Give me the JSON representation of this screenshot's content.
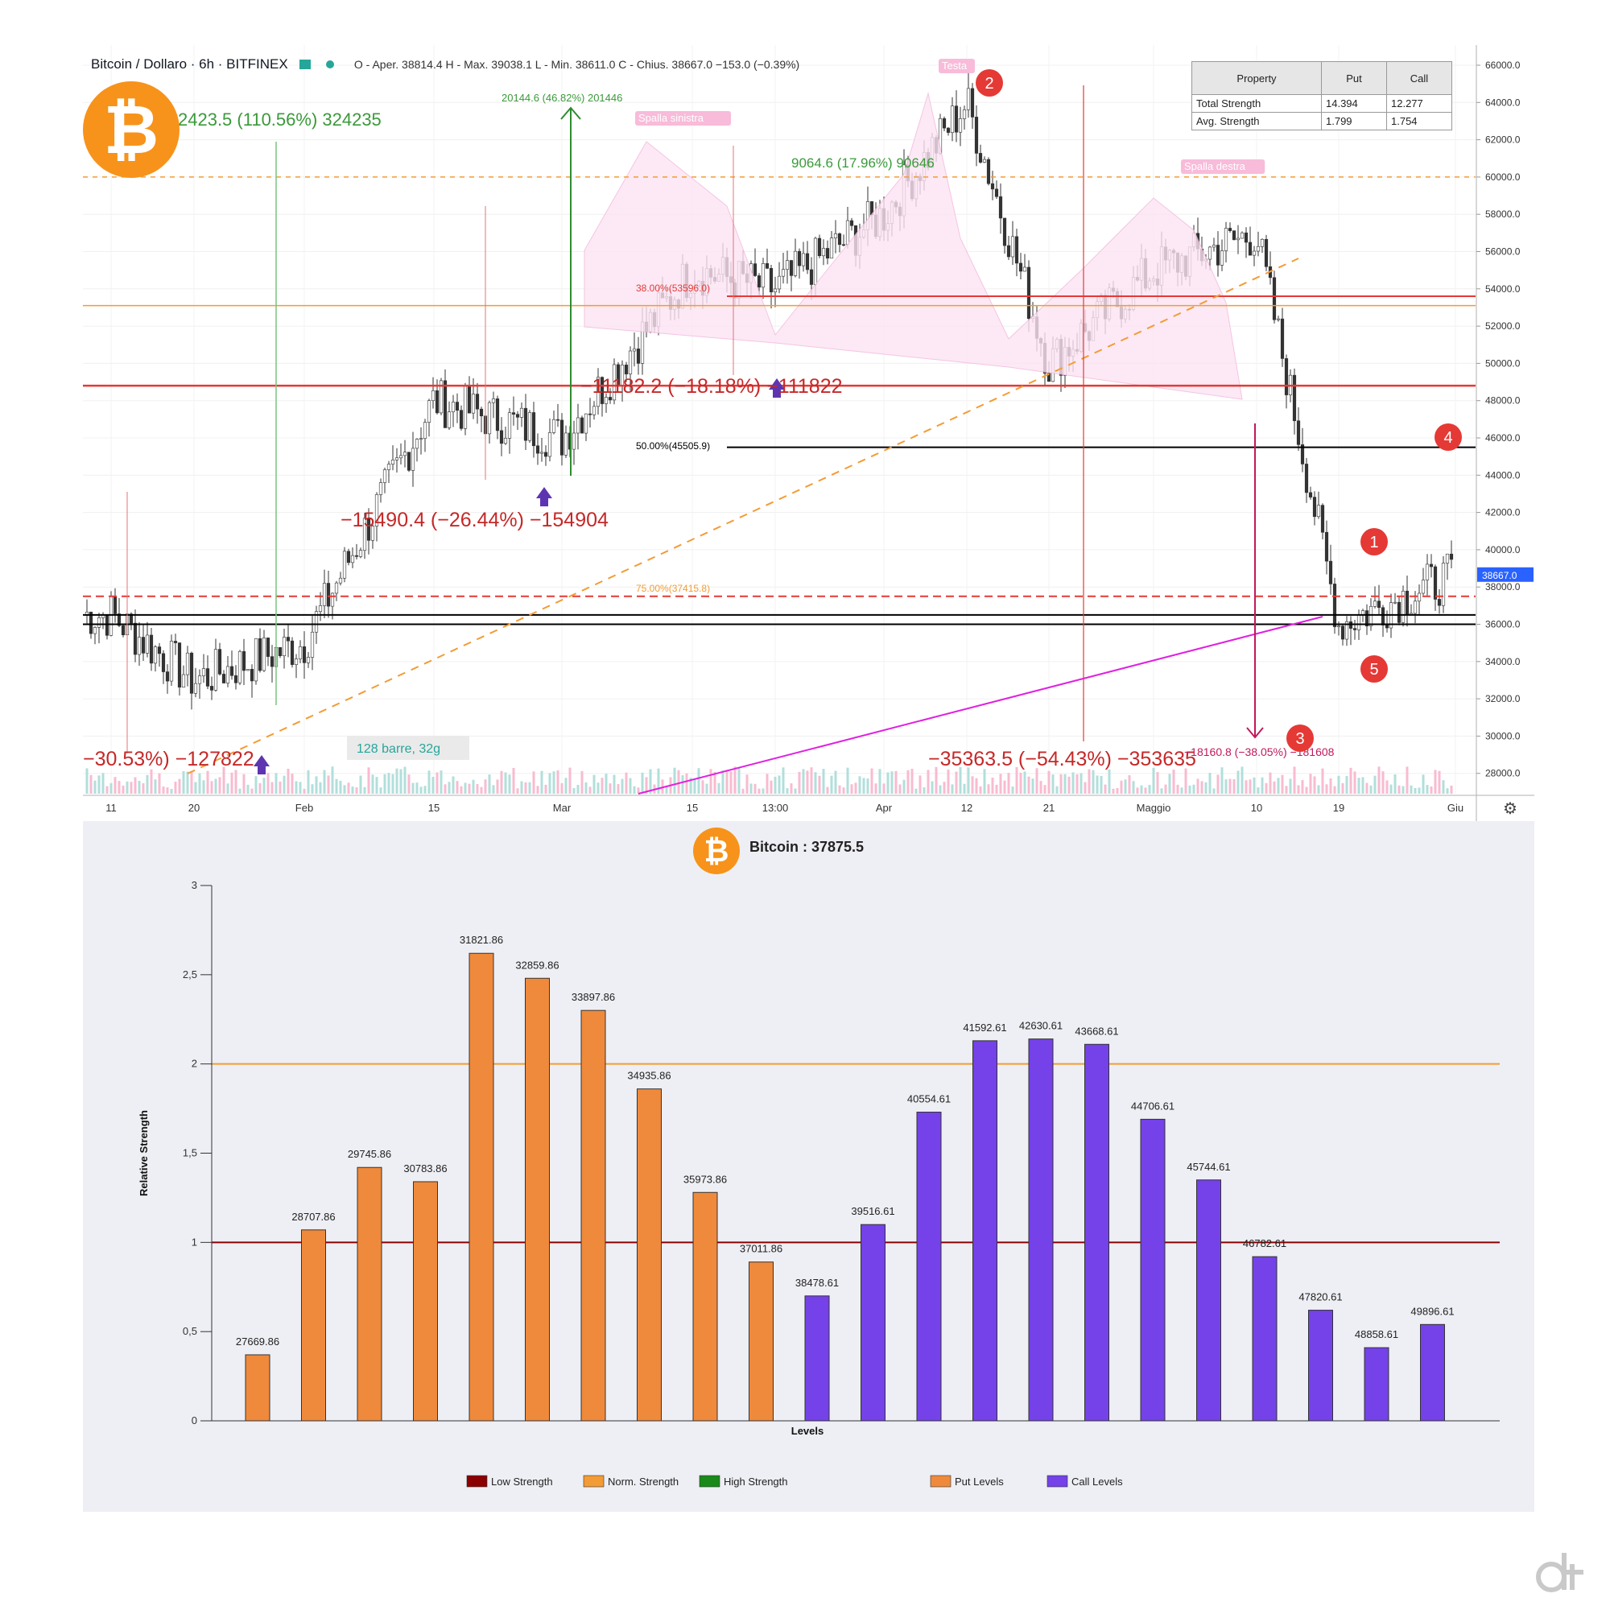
{
  "header": {
    "symbol": "Bitcoin / Dollaro · 6h · BITFINEX",
    "ohlc": "O - Aper. 38814.4  H - Max. 39038.1  L - Min. 38611.0  C - Chius. 38667.0  −153.0 (−0.39%)"
  },
  "property_table": {
    "headers": [
      "Property",
      "Put",
      "Call"
    ],
    "rows": [
      [
        "Total Strength",
        "14.394",
        "12.277"
      ],
      [
        "Avg. Strength",
        "1.799",
        "1.754"
      ]
    ]
  },
  "price_axis_ticks": [
    "66000.0",
    "64000.0",
    "62000.0",
    "60000.0",
    "58000.0",
    "56000.0",
    "54000.0",
    "52000.0",
    "50000.0",
    "48000.0",
    "46000.0",
    "44000.0",
    "42000.0",
    "40000.0",
    "38000.0",
    "36000.0",
    "34000.0",
    "32000.0",
    "30000.0",
    "28000.0"
  ],
  "time_axis_ticks": [
    "11",
    "20",
    "Feb",
    "15",
    "Mar",
    "15",
    "13:00",
    "Apr",
    "12",
    "21",
    "Maggio",
    "10",
    "19",
    "Giu"
  ],
  "last_price_label": "38667.0",
  "annotations": {
    "a1": "2423.5 (110.56%) 324235",
    "a2": "20144.6 (46.82%) 201446",
    "a3": "9064.6 (17.96%) 90646",
    "a4": "−11182.2 (−18.18%) −111822",
    "a5": "−15490.4 (−26.44%) −154904",
    "a6": "−30.53%) −127822",
    "a7": "−35363.5 (−54.43%) −353635",
    "a8": "−18160.8 (−38.05%) −181608",
    "a9": "128 barre, 32g",
    "fib1": "38.00%(53596.0)",
    "fib2": "50.00%(45505.9)",
    "fib3": "75.00%(37415.8)",
    "shoulder_left": "Spalla sinistra",
    "shoulder_right": "Spalla destra",
    "head": "Testa",
    "markers": [
      "1",
      "2",
      "3",
      "4",
      "5"
    ]
  },
  "bottom": {
    "title": "Bitcoin : 37875.5",
    "legend": [
      "Low Strength",
      "Norm. Strength",
      "High Strength",
      "Put Levels",
      "Call Levels"
    ]
  },
  "colors": {
    "put": "#ef8a3c",
    "call": "#7442e8",
    "low": "#8b0000",
    "norm": "#f39c35",
    "high": "#1a8a1a",
    "bitcoin": "#f7931a",
    "marker": "#e53935"
  },
  "chart_data": [
    {
      "type": "line",
      "title": "Bitcoin / Dollaro · 6h · BITFINEX",
      "xlabel": "",
      "ylabel": "",
      "ylim": [
        27000,
        66500
      ],
      "x": [
        "11",
        "20",
        "Feb",
        "15",
        "Mar",
        "15",
        "13:00",
        "Apr",
        "12",
        "21",
        "Maggio",
        "10",
        "19",
        "Giu"
      ],
      "series": [
        {
          "name": "Bitcoin / Dollaro",
          "values": [
            36500,
            33000,
            35000,
            48000,
            46000,
            55000,
            54000,
            58000,
            64000,
            50000,
            55000,
            57000,
            36000,
            38667
          ]
        }
      ],
      "horizontal_levels": [
        60000,
        53600,
        53100,
        48800,
        45500,
        37500,
        36500,
        36000
      ]
    },
    {
      "type": "bar",
      "title": "Bitcoin : 37875.5",
      "xlabel": "Levels",
      "ylabel": "Relative Strength",
      "ylim": [
        0,
        3
      ],
      "yticks": [
        "0",
        "0,5",
        "1",
        "1,5",
        "2",
        "2,5",
        "3"
      ],
      "reference_lines": [
        {
          "name": "Low Strength",
          "value": 1
        },
        {
          "name": "Norm. Strength",
          "value": 2
        }
      ],
      "series": [
        {
          "name": "Put Levels",
          "categories": [
            "27669.86",
            "28707.86",
            "29745.86",
            "30783.86",
            "31821.86",
            "32859.86",
            "33897.86",
            "34935.86",
            "35973.86",
            "37011.86"
          ],
          "values": [
            0.37,
            1.07,
            1.42,
            1.34,
            2.62,
            2.48,
            2.3,
            1.86,
            1.28,
            0.89
          ]
        },
        {
          "name": "Call Levels",
          "categories": [
            "38478.61",
            "39516.61",
            "40554.61",
            "41592.61",
            "42630.61",
            "43668.61",
            "44706.61",
            "45744.61",
            "46782.61",
            "47820.61",
            "48858.61",
            "49896.61"
          ],
          "values": [
            0.7,
            1.1,
            1.73,
            2.13,
            2.14,
            2.11,
            1.69,
            1.35,
            0.92,
            0.62,
            0.41,
            0.54
          ]
        }
      ]
    }
  ]
}
